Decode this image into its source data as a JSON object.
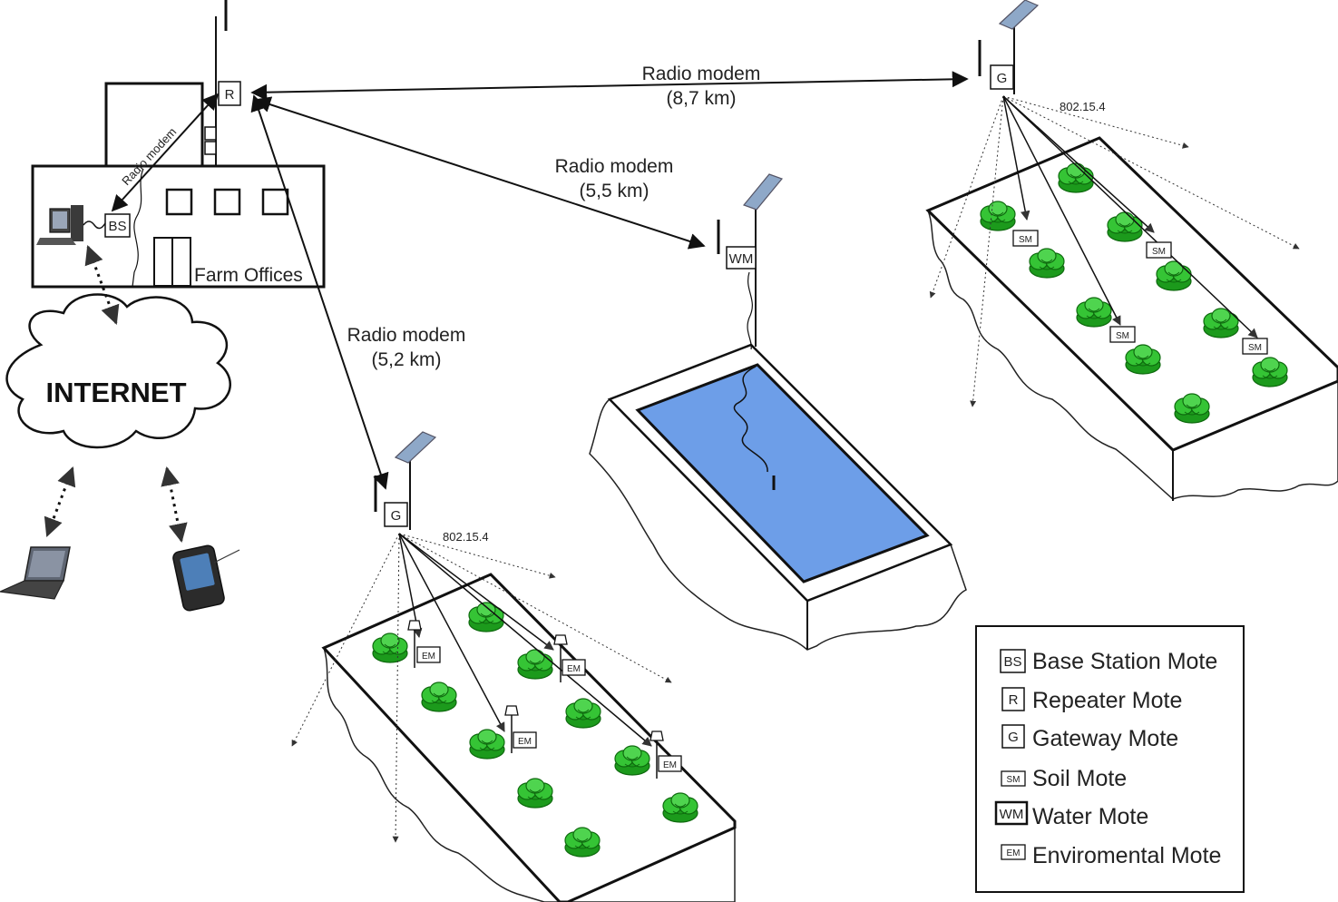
{
  "links": {
    "repeater_to_gateway_east": {
      "label": "Radio modem",
      "distance": "(8,7 km)"
    },
    "repeater_to_water": {
      "label": "Radio modem",
      "distance": "(5,5 km)"
    },
    "repeater_to_gateway_south": {
      "label": "Radio modem",
      "distance": "(5,2 km)"
    },
    "repeater_to_base": {
      "label": "Radio modem"
    },
    "protocol_east": "802.15.4",
    "protocol_south": "802.15.4"
  },
  "building": {
    "label": "Farm Offices"
  },
  "cloud": {
    "label": "INTERNET"
  },
  "motes": {
    "repeater": "R",
    "base_station": "BS",
    "gateway": "G",
    "water": "WM",
    "soil": "SM",
    "environmental": "EM"
  },
  "legend": {
    "items": [
      {
        "code": "BS",
        "label": "Base Station Mote"
      },
      {
        "code": "R",
        "label": "Repeater Mote"
      },
      {
        "code": "G",
        "label": "Gateway Mote"
      },
      {
        "code": "SM",
        "label": "Soil Mote"
      },
      {
        "code": "WM",
        "label": "Water Mote"
      },
      {
        "code": "EM",
        "label": "Enviromental Mote"
      }
    ]
  },
  "colors": {
    "water": "#6d9ee8",
    "plant": "#2fbf2f",
    "plant_dark": "#138a13",
    "panel": "#8ea8c8"
  }
}
